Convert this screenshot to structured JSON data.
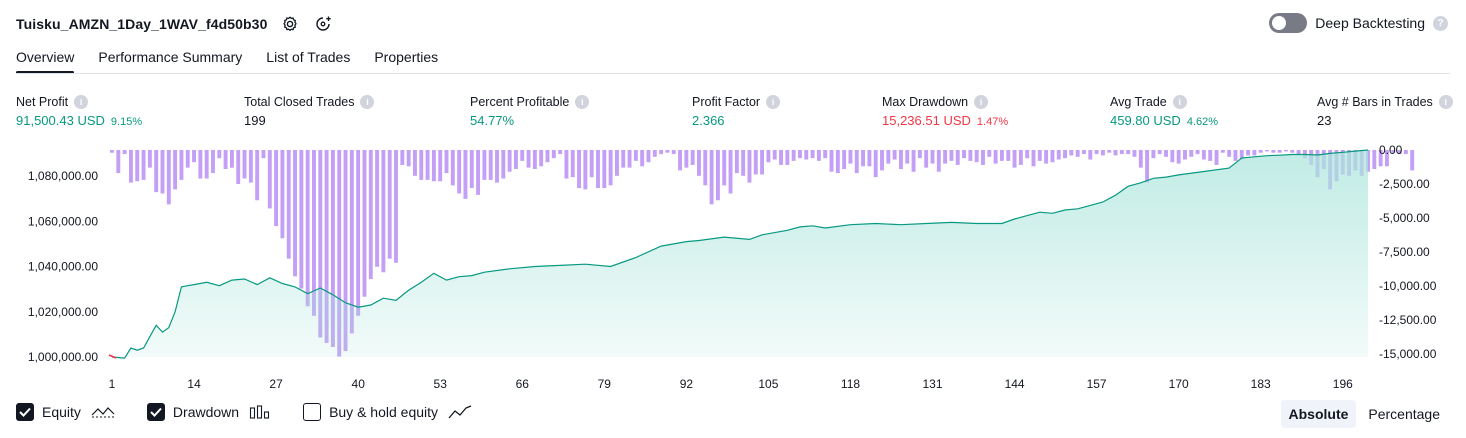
{
  "header": {
    "title": "Tuisku_AMZN_1Day_1WAV_f4d50b30",
    "settings_icon": "gear-icon",
    "source_icon": "link-settings-icon"
  },
  "deep_backtesting": {
    "label": "Deep Backtesting",
    "enabled": false,
    "help": "?"
  },
  "tabs": [
    {
      "label": "Overview",
      "active": true
    },
    {
      "label": "Performance Summary",
      "active": false
    },
    {
      "label": "List of Trades",
      "active": false
    },
    {
      "label": "Properties",
      "active": false
    }
  ],
  "metrics": {
    "net_profit": {
      "label": "Net Profit",
      "value": "91,500.43 USD",
      "pct": "9.15%"
    },
    "total_closed_trades": {
      "label": "Total Closed Trades",
      "value": "199"
    },
    "percent_profitable": {
      "label": "Percent Profitable",
      "value": "54.77%"
    },
    "profit_factor": {
      "label": "Profit Factor",
      "value": "2.366"
    },
    "max_drawdown": {
      "label": "Max Drawdown",
      "value": "15,236.51 USD",
      "pct": "1.47%"
    },
    "avg_trade": {
      "label": "Avg Trade",
      "value": "459.80 USD",
      "pct": "4.62%"
    },
    "avg_bars": {
      "label": "Avg # Bars in Trades",
      "value": "23"
    },
    "info_glyph": "i"
  },
  "chart_data": {
    "type": "area",
    "x_ticks": [
      "1",
      "14",
      "27",
      "40",
      "53",
      "66",
      "79",
      "92",
      "105",
      "118",
      "131",
      "144",
      "157",
      "170",
      "183",
      "196"
    ],
    "left_axis": {
      "ticks": [
        "1,080,000.00",
        "1,060,000.00",
        "1,040,000.00",
        "1,020,000.00",
        "1,000,000.00"
      ],
      "tick_values": [
        1080000,
        1060000,
        1040000,
        1020000,
        1000000
      ],
      "range": [
        1000000,
        1091500
      ]
    },
    "right_axis": {
      "ticks": [
        "0.00",
        "-2,500.00",
        "-5,000.00",
        "-7,500.00",
        "-10,000.00",
        "-12,500.00",
        "-15,000.00"
      ],
      "tick_values": [
        0,
        -2500,
        -5000,
        -7500,
        -10000,
        -12500,
        -15000
      ],
      "range": [
        0,
        -15236.51
      ]
    },
    "equity": {
      "name": "Equity",
      "x": [
        1,
        3,
        4,
        5,
        6,
        7,
        8,
        9,
        10,
        11,
        12,
        13,
        14,
        16,
        18,
        20,
        22,
        24,
        26,
        28,
        30,
        32,
        34,
        36,
        38,
        40,
        42,
        44,
        46,
        48,
        50,
        52,
        54,
        56,
        58,
        60,
        64,
        68,
        72,
        76,
        80,
        84,
        88,
        90,
        92,
        94,
        98,
        102,
        104,
        108,
        110,
        112,
        114,
        118,
        122,
        126,
        130,
        134,
        138,
        142,
        144,
        146,
        148,
        150,
        152,
        154,
        156,
        158,
        160,
        162,
        164,
        166,
        168,
        170,
        174,
        178,
        180,
        182,
        184,
        186,
        188,
        190,
        192,
        194,
        196,
        198,
        200
      ],
      "y": [
        1000000,
        999500,
        1004000,
        1003000,
        1004000,
        1009000,
        1014000,
        1011000,
        1013000,
        1020000,
        1031000,
        1031500,
        1032000,
        1033000,
        1031500,
        1034000,
        1034500,
        1032000,
        1035000,
        1032500,
        1031000,
        1028000,
        1030500,
        1027500,
        1024000,
        1022000,
        1023000,
        1026000,
        1025000,
        1029500,
        1033000,
        1037000,
        1034000,
        1035500,
        1036000,
        1037500,
        1039000,
        1040000,
        1040500,
        1041000,
        1040000,
        1044000,
        1049000,
        1050000,
        1051000,
        1051500,
        1053000,
        1052000,
        1054000,
        1056000,
        1057500,
        1058000,
        1057000,
        1058500,
        1059000,
        1058500,
        1059000,
        1059500,
        1059000,
        1059000,
        1061000,
        1062500,
        1064000,
        1063500,
        1065000,
        1065500,
        1067000,
        1068500,
        1071500,
        1075500,
        1077000,
        1079000,
        1079500,
        1080500,
        1082000,
        1083500,
        1088000,
        1088500,
        1089000,
        1089200,
        1089500,
        1089500,
        1089300,
        1090000,
        1090500,
        1091000,
        1091500
      ]
    },
    "drawdown": {
      "name": "Drawdown",
      "values": [
        -200,
        -1700,
        -300,
        -2400,
        -2300,
        -2200,
        -1300,
        -3100,
        -3200,
        -4000,
        -2900,
        -2200,
        -1300,
        -900,
        -2100,
        -2100,
        -1700,
        -600,
        -1400,
        -1300,
        -2500,
        -2100,
        -2400,
        -3700,
        -600,
        -4300,
        -5600,
        -6500,
        -8000,
        -9300,
        -10200,
        -11500,
        -12200,
        -13800,
        -14200,
        -14500,
        -15200,
        -14800,
        -13500,
        -12200,
        -10800,
        -9500,
        -8600,
        -9000,
        -8000,
        -8300,
        -1100,
        -1200,
        -1900,
        -2200,
        -2200,
        -2300,
        -2300,
        -1700,
        -2600,
        -3200,
        -3600,
        -2800,
        -3300,
        -2200,
        -2200,
        -2400,
        -2100,
        -1600,
        -1400,
        -800,
        -1300,
        -1400,
        -1200,
        -900,
        -600,
        -300,
        -2100,
        -2000,
        -2800,
        -2900,
        -2000,
        -2800,
        -2800,
        -2600,
        -1900,
        -1300,
        -1300,
        -800,
        -1200,
        -900,
        -500,
        -300,
        -200,
        -300,
        -1500,
        -1300,
        -1100,
        -1900,
        -2600,
        -4000,
        -3700,
        -2600,
        -3200,
        -1700,
        -1900,
        -2400,
        -1800,
        -1800,
        -900,
        -700,
        -1100,
        -1100,
        -800,
        -600,
        -700,
        -600,
        -800,
        -600,
        -1600,
        -1700,
        -1400,
        -1000,
        -1700,
        -1200,
        -1200,
        -2000,
        -1500,
        -1000,
        -700,
        -1400,
        -1000,
        -1600,
        -600,
        -1300,
        -1000,
        -1600,
        -1000,
        -800,
        -1100,
        -600,
        -800,
        -900,
        -1100,
        -500,
        -1000,
        -800,
        -800,
        -1300,
        -1100,
        -600,
        -1200,
        -800,
        -1000,
        -900,
        -700,
        -600,
        -400,
        -500,
        -300,
        -700,
        -300,
        -400,
        -200,
        -400,
        -300,
        -300,
        -500,
        -1300,
        -2400,
        -600,
        -300,
        -500,
        -900,
        -1000,
        -700,
        -500,
        -300,
        -700,
        -800,
        -1100,
        -200,
        -500,
        -800,
        -700,
        -400,
        -400,
        -200,
        -100,
        -200,
        -200,
        -100,
        -200,
        -300,
        -600,
        -1100,
        -2000,
        -1400,
        -2900,
        -2300,
        -1800,
        -1900,
        -1500,
        -1900,
        -1600,
        -1400,
        -1200,
        -1200,
        -200,
        -300,
        -300,
        -1500
      ]
    },
    "colors": {
      "equity_line": "#089981",
      "equity_fill_top": "#ace5dc",
      "drawdown_bar": "#c39ff5",
      "drawdown_overlap": "#9d9ed8",
      "start_marker": "#f23645"
    }
  },
  "legend": [
    {
      "label": "Equity",
      "checked": true,
      "glyph": "equity-line-icon"
    },
    {
      "label": "Drawdown",
      "checked": true,
      "glyph": "drawdown-bars-icon"
    },
    {
      "label": "Buy & hold equity",
      "checked": false,
      "glyph": "buy-hold-line-icon"
    }
  ],
  "mode": {
    "absolute": "Absolute",
    "percentage": "Percentage",
    "selected": "Absolute"
  }
}
